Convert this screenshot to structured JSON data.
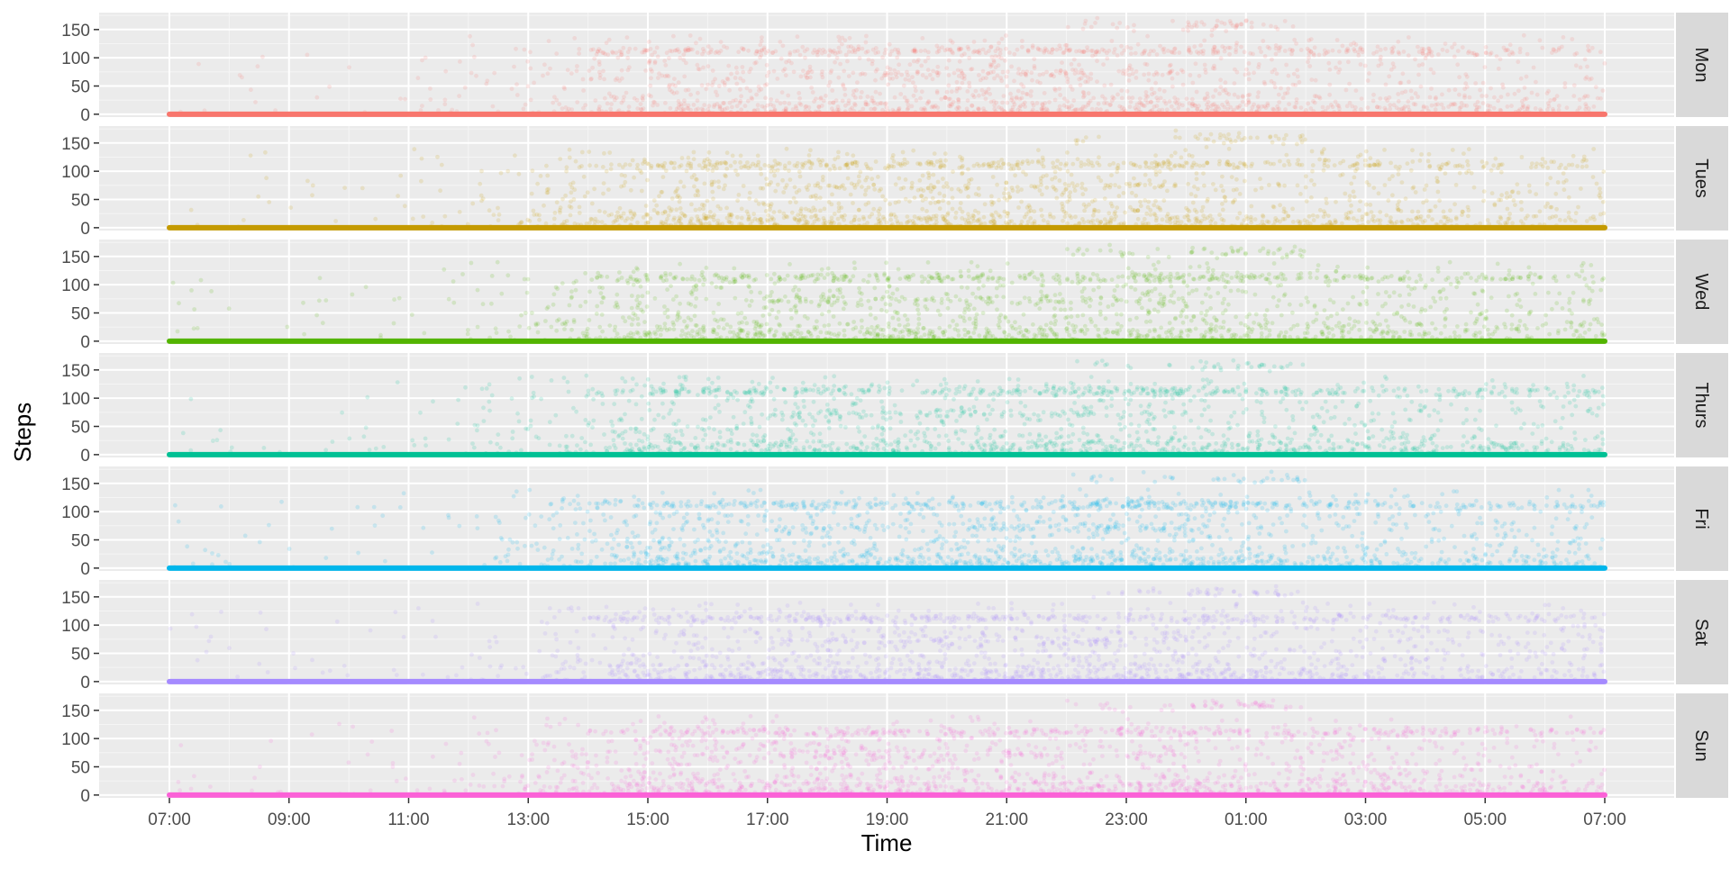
{
  "chart_data": {
    "type": "scatter",
    "facet_by": "weekday",
    "xlabel": "Time",
    "ylabel": "Steps",
    "x_ticks": [
      "07:00",
      "09:00",
      "11:00",
      "13:00",
      "15:00",
      "17:00",
      "19:00",
      "21:00",
      "23:00",
      "01:00",
      "03:00",
      "05:00",
      "07:00"
    ],
    "x_range": [
      "07:00",
      "07:00 (+1 day)"
    ],
    "y_ticks": [
      0,
      50,
      100,
      150
    ],
    "ylim": [
      -5,
      180
    ],
    "grid": true,
    "legend": "none",
    "series": [
      {
        "name": "Mon",
        "color": "#F8766D",
        "baseline_steps": 0,
        "activity_profile": {
          "hours_from_07": [
            0,
            2,
            4,
            6,
            7,
            8,
            10,
            12,
            14,
            16,
            17.5,
            18,
            20,
            22,
            24
          ],
          "relative_density": [
            0.05,
            0.05,
            0.05,
            0.2,
            0.4,
            0.85,
            0.9,
            0.85,
            0.85,
            1.0,
            1.0,
            0.85,
            0.7,
            0.55,
            0.4
          ]
        },
        "dense_bands_steps": [
          110,
          70,
          160
        ]
      },
      {
        "name": "Tues",
        "color": "#C49A00",
        "baseline_steps": 0,
        "activity_profile": {
          "hours_from_07": [
            0,
            2,
            4,
            6,
            7,
            8,
            10,
            12,
            14,
            16,
            17.5,
            18,
            20,
            22,
            24
          ],
          "relative_density": [
            0.05,
            0.05,
            0.05,
            0.25,
            0.5,
            0.9,
            0.95,
            0.9,
            0.85,
            1.0,
            1.0,
            0.85,
            0.7,
            0.55,
            0.45
          ]
        },
        "dense_bands_steps": [
          110,
          70,
          160
        ]
      },
      {
        "name": "Wed",
        "color": "#53B400",
        "baseline_steps": 0,
        "activity_profile": {
          "hours_from_07": [
            0,
            2,
            4,
            6,
            7,
            8,
            10,
            12,
            14,
            16,
            17.5,
            18,
            20,
            22,
            24
          ],
          "relative_density": [
            0.05,
            0.05,
            0.05,
            0.2,
            0.45,
            0.85,
            0.95,
            0.9,
            0.85,
            1.0,
            1.0,
            0.85,
            0.7,
            0.55,
            0.45
          ]
        },
        "dense_bands_steps": [
          110,
          70,
          160
        ]
      },
      {
        "name": "Thurs",
        "color": "#00C094",
        "baseline_steps": 0,
        "activity_profile": {
          "hours_from_07": [
            0,
            2,
            4,
            6,
            7,
            8,
            10,
            12,
            14,
            16,
            17.5,
            18,
            20,
            22,
            24
          ],
          "relative_density": [
            0.05,
            0.05,
            0.05,
            0.2,
            0.4,
            0.85,
            0.9,
            0.85,
            0.85,
            1.0,
            1.0,
            0.85,
            0.7,
            0.55,
            0.4
          ]
        },
        "dense_bands_steps": [
          110,
          70,
          160
        ]
      },
      {
        "name": "Fri",
        "color": "#00B6EB",
        "baseline_steps": 0,
        "activity_profile": {
          "hours_from_07": [
            0,
            2,
            4,
            6,
            7,
            8,
            10,
            12,
            14,
            16,
            17.5,
            18,
            20,
            22,
            24
          ],
          "relative_density": [
            0.05,
            0.05,
            0.05,
            0.25,
            0.5,
            0.9,
            0.95,
            0.9,
            0.85,
            1.0,
            1.0,
            0.85,
            0.7,
            0.55,
            0.45
          ]
        },
        "dense_bands_steps": [
          110,
          70,
          160
        ]
      },
      {
        "name": "Sat",
        "color": "#A58AFF",
        "baseline_steps": 0,
        "activity_profile": {
          "hours_from_07": [
            0,
            2,
            4,
            6,
            7,
            8,
            10,
            12,
            14,
            16,
            17.5,
            18,
            20,
            22,
            24
          ],
          "relative_density": [
            0.05,
            0.05,
            0.05,
            0.2,
            0.45,
            0.85,
            0.9,
            0.9,
            0.9,
            1.0,
            1.0,
            0.85,
            0.7,
            0.55,
            0.45
          ]
        },
        "dense_bands_steps": [
          110,
          70,
          160
        ]
      },
      {
        "name": "Sun",
        "color": "#FB61D7",
        "baseline_steps": 0,
        "activity_profile": {
          "hours_from_07": [
            0,
            2,
            4,
            6,
            7,
            8,
            10,
            12,
            14,
            16,
            17.5,
            18,
            20,
            22,
            24
          ],
          "relative_density": [
            0.05,
            0.05,
            0.05,
            0.25,
            0.5,
            0.9,
            0.95,
            0.9,
            0.85,
            1.0,
            1.0,
            0.85,
            0.7,
            0.55,
            0.45
          ]
        },
        "dense_bands_steps": [
          110,
          70,
          160
        ]
      }
    ]
  }
}
